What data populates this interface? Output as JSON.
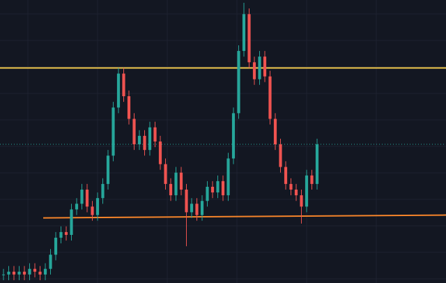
{
  "chart_data": {
    "type": "candlestick",
    "ylim": [
      0,
      100
    ],
    "up_color": "#26a69a",
    "down_color": "#ef5350",
    "open": [
      3,
      3,
      4,
      3,
      4,
      3,
      5,
      4,
      3,
      5,
      10,
      16,
      18,
      17,
      26,
      28,
      33,
      27,
      24,
      30,
      35,
      45,
      62,
      74,
      66,
      58,
      49,
      52,
      47,
      55,
      50,
      42,
      35,
      31,
      39,
      33,
      25,
      28,
      24,
      29,
      34,
      32,
      36,
      31,
      44,
      60,
      82,
      95,
      78,
      72,
      80,
      73,
      58,
      49,
      41,
      35,
      33,
      31,
      27,
      38,
      35
    ],
    "high": [
      5,
      6,
      6,
      6,
      6,
      7,
      7,
      6,
      7,
      12,
      18,
      20,
      20,
      28,
      30,
      35,
      35,
      29,
      32,
      37,
      47,
      64,
      76,
      76,
      68,
      60,
      54,
      54,
      57,
      57,
      52,
      44,
      37,
      41,
      41,
      35,
      30,
      30,
      31,
      36,
      36,
      38,
      38,
      46,
      62,
      84,
      99,
      97,
      80,
      82,
      82,
      75,
      60,
      51,
      43,
      37,
      35,
      33,
      40,
      40,
      51
    ],
    "low": [
      1,
      1,
      1,
      1,
      1,
      1,
      2,
      1,
      1,
      3,
      8,
      14,
      15,
      15,
      24,
      26,
      25,
      22,
      22,
      28,
      33,
      43,
      60,
      64,
      56,
      47,
      47,
      45,
      45,
      48,
      40,
      33,
      29,
      29,
      31,
      13,
      23,
      22,
      22,
      27,
      30,
      30,
      29,
      29,
      42,
      58,
      80,
      76,
      70,
      70,
      71,
      56,
      47,
      39,
      33,
      31,
      29,
      21,
      25,
      33,
      33
    ],
    "close": [
      3,
      4,
      3,
      4,
      3,
      5,
      4,
      3,
      5,
      10,
      16,
      18,
      17,
      26,
      28,
      33,
      27,
      24,
      30,
      35,
      45,
      62,
      74,
      66,
      58,
      49,
      52,
      47,
      55,
      50,
      42,
      35,
      31,
      39,
      33,
      25,
      28,
      24,
      29,
      34,
      32,
      36,
      31,
      44,
      60,
      82,
      95,
      78,
      72,
      80,
      73,
      58,
      49,
      41,
      35,
      33,
      31,
      27,
      38,
      35,
      49
    ],
    "levels": [
      {
        "color": "#f2c94c",
        "values": [
          76,
          76
        ]
      },
      {
        "color": "#f5842a",
        "values": [
          23,
          24
        ]
      }
    ],
    "last_price_line": true
  }
}
